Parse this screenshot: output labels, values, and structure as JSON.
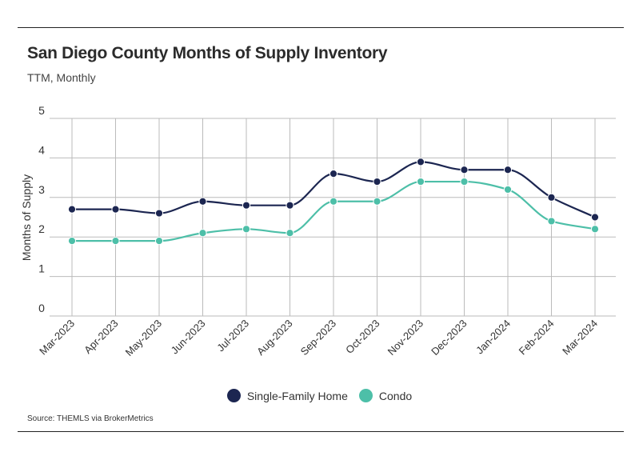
{
  "header": {
    "title": "San Diego County Months of Supply Inventory",
    "subtitle": "TTM, Monthly"
  },
  "footer": {
    "source": "Source:  THEMLS via BrokerMetrics"
  },
  "colors": {
    "single_family": "#1c2651",
    "condo": "#4dbfa8",
    "grid": "#bbbbbb"
  },
  "chart_data": {
    "type": "line",
    "title": "San Diego County Months of Supply Inventory",
    "subtitle": "TTM, Monthly",
    "xlabel": "",
    "ylabel": "Months of Supply",
    "ylim": [
      0,
      5
    ],
    "yticks": [
      0,
      1,
      2,
      3,
      4,
      5
    ],
    "grid": true,
    "legend_position": "bottom-center",
    "categories": [
      "Mar-2023",
      "Apr-2023",
      "May-2023",
      "Jun-2023",
      "Jul-2023",
      "Aug-2023",
      "Sep-2023",
      "Oct-2023",
      "Nov-2023",
      "Dec-2023",
      "Jan-2024",
      "Feb-2024",
      "Mar-2024"
    ],
    "series": [
      {
        "name": "Single-Family Home",
        "values": [
          2.7,
          2.7,
          2.6,
          2.9,
          2.8,
          2.8,
          3.6,
          3.4,
          3.9,
          3.7,
          3.7,
          3.0,
          2.5
        ]
      },
      {
        "name": "Condo",
        "values": [
          1.9,
          1.9,
          1.9,
          2.1,
          2.2,
          2.1,
          2.9,
          2.9,
          3.4,
          3.4,
          3.2,
          2.4,
          2.2
        ]
      }
    ]
  }
}
